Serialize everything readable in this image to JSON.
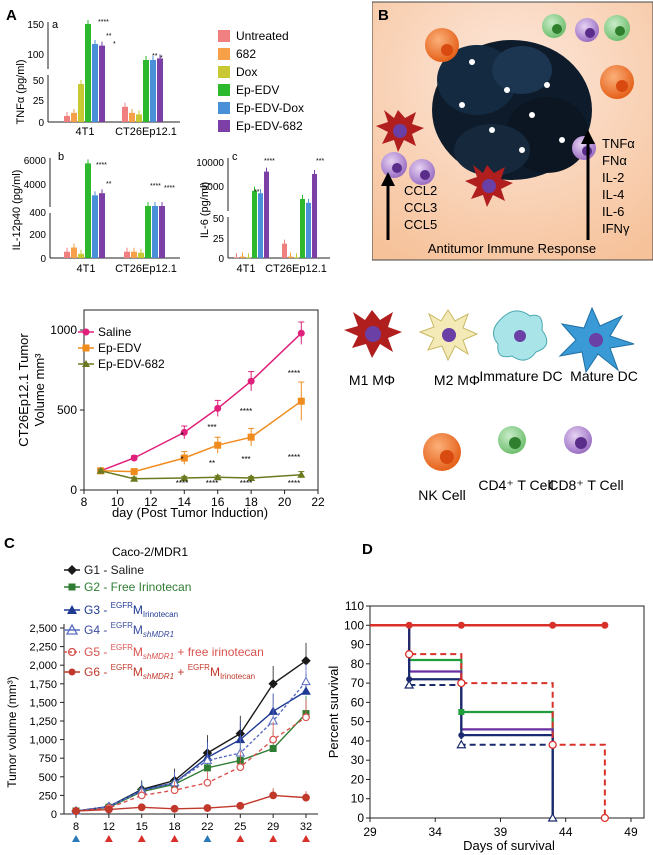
{
  "panel_labels": {
    "A": "A",
    "B": "B",
    "C": "C",
    "D": "D"
  },
  "colors": {
    "untreated": "#f08080",
    "c682": "#f7a04a",
    "dox": "#c8c832",
    "ep_edv": "#2eb82e",
    "ep_edv_dox": "#4a90d9",
    "ep_edv_682": "#7b3fa6",
    "saline": "#e0207a",
    "ep_edv_line": "#f08c1e",
    "ep_edv_682_line": "#6b7a1e",
    "c_g1": "#1a1a1a",
    "c_g2": "#2e7d32",
    "c_g3": "#1f3a93",
    "c_g4": "#5b6ec2",
    "c_g5": "#d9534f",
    "c_g6": "#c0392b",
    "d_red": "#d9302a"
  },
  "panelA": {
    "legend": [
      "Untreated",
      "682",
      "Dox",
      "Ep-EDV",
      "Ep-EDV-Dox",
      "Ep-EDV-682"
    ],
    "a": {
      "sublabel": "a",
      "ylabel": "TNFα (pg/ml)",
      "yticks": [
        "0",
        "25",
        "50",
        "100",
        "150"
      ],
      "groups": [
        "4T1",
        "CT26Ep12.1"
      ],
      "stars": [
        "****",
        "**",
        "*",
        "**",
        "*"
      ]
    },
    "b": {
      "sublabel": "b",
      "ylabel": "IL-12p40 (pg/ml)",
      "yticks": [
        "0",
        "200",
        "400",
        "4000",
        "6000"
      ],
      "groups": [
        "4T1",
        "CT26Ep12.1"
      ],
      "stars": [
        "****",
        "**",
        "****",
        "****"
      ]
    },
    "c": {
      "sublabel": "c",
      "ylabel": "IL-6 (pg/ml)",
      "yticks": [
        "0",
        "25",
        "50",
        "5000",
        "10000"
      ],
      "groups": [
        "4T1",
        "CT26Ep12.1"
      ],
      "stars": [
        "****",
        "**",
        "***"
      ]
    }
  },
  "panelB": {
    "left_cytokines": [
      "CCL2",
      "CCL3",
      "CCL5"
    ],
    "right_cytokines": [
      "TNFα",
      "FNα",
      "IL-2",
      "IL-4",
      "IL-6",
      "IFNγ"
    ],
    "caption": "Antitumor Immune Response"
  },
  "legend_cells": [
    "M1 MΦ",
    "M2 MΦ",
    "Immature DC",
    "Mature DC",
    "NK Cell",
    "CD4⁺ T Cell",
    "CD8⁺ T Cell"
  ],
  "chart_data": [
    {
      "type": "bar",
      "panel": "A-a",
      "title": "TNFα",
      "ylabel": "TNFα (pg/ml)",
      "categories": [
        "4T1",
        "CT26Ep12.1"
      ],
      "series": [
        {
          "name": "Untreated",
          "values": [
            8,
            20
          ]
        },
        {
          "name": "682",
          "values": [
            12,
            12
          ]
        },
        {
          "name": "Dox",
          "values": [
            50,
            10
          ]
        },
        {
          "name": "Ep-EDV",
          "values": [
            155,
            110
          ]
        },
        {
          "name": "Ep-EDV-Dox",
          "values": [
            130,
            110
          ]
        },
        {
          "name": "Ep-EDV-682",
          "values": [
            128,
            112
          ]
        }
      ]
    },
    {
      "type": "bar",
      "panel": "A-b",
      "title": "IL-12p40",
      "ylabel": "IL-12p40 (pg/ml)",
      "categories": [
        "4T1",
        "CT26Ep12.1"
      ],
      "series": [
        {
          "name": "Untreated",
          "values": [
            60,
            60
          ]
        },
        {
          "name": "682",
          "values": [
            100,
            60
          ]
        },
        {
          "name": "Dox",
          "values": [
            40,
            50
          ]
        },
        {
          "name": "Ep-EDV",
          "values": [
            7000,
            3000
          ]
        },
        {
          "name": "Ep-EDV-Dox",
          "values": [
            4000,
            2500
          ]
        },
        {
          "name": "Ep-EDV-682",
          "values": [
            4200,
            2700
          ]
        }
      ]
    },
    {
      "type": "bar",
      "panel": "A-c",
      "title": "IL-6",
      "ylabel": "IL-6 (pg/ml)",
      "categories": [
        "4T1",
        "CT26Ep12.1"
      ],
      "series": [
        {
          "name": "Untreated",
          "values": [
            1,
            20
          ]
        },
        {
          "name": "682",
          "values": [
            2,
            2
          ]
        },
        {
          "name": "Dox",
          "values": [
            1,
            1
          ]
        },
        {
          "name": "Ep-EDV",
          "values": [
            4000,
            2300
          ]
        },
        {
          "name": "Ep-EDV-Dox",
          "values": [
            3500,
            1500
          ]
        },
        {
          "name": "Ep-EDV-682",
          "values": [
            8000,
            7500
          ]
        }
      ]
    },
    {
      "type": "line",
      "panel": "A-d",
      "title": "",
      "xlabel": "day (Post Tumor Induction)",
      "ylabel_lines": [
        "CT26Ep12.1 Tumor",
        "Volume mm³"
      ],
      "x": [
        9,
        11,
        14,
        16,
        18,
        21
      ],
      "xlim": [
        8,
        22
      ],
      "ylim": [
        0,
        1000
      ],
      "xticks": [
        "8",
        "10",
        "12",
        "14",
        "16",
        "18",
        "20",
        "22"
      ],
      "yticks": [
        "0",
        "500",
        "1000"
      ],
      "series": [
        {
          "name": "Saline",
          "values": [
            120,
            200,
            360,
            510,
            680,
            980
          ],
          "err": [
            10,
            15,
            40,
            50,
            60,
            70
          ]
        },
        {
          "name": "Ep-EDV",
          "values": [
            120,
            115,
            200,
            280,
            330,
            555
          ],
          "err": [
            10,
            15,
            40,
            50,
            55,
            120
          ]
        },
        {
          "name": "Ep-EDV-682",
          "values": [
            120,
            70,
            75,
            80,
            75,
            95
          ],
          "err": [
            10,
            10,
            10,
            10,
            10,
            20
          ]
        }
      ],
      "annotations_upper": [
        "*",
        "***",
        "****",
        "****"
      ],
      "annotations_mid": [
        "*",
        "**",
        "***",
        "****"
      ],
      "annotations_lower": [
        "****",
        "****",
        "****",
        "****"
      ]
    },
    {
      "type": "line",
      "panel": "C",
      "title": "Caco-2/MDR1",
      "xlabel": "",
      "ylabel": "Tumor volume (mm³)",
      "x": [
        8,
        12,
        15,
        18,
        22,
        25,
        29,
        32
      ],
      "xticks": [
        "8",
        "12",
        "15",
        "18",
        "22",
        "25",
        "29",
        "32"
      ],
      "yticks": [
        "0",
        "250",
        "500",
        "750",
        "1,000",
        "1,250",
        "1,500",
        "1,750",
        "2,000",
        "2,250",
        "2,500"
      ],
      "ylim": [
        0,
        2500
      ],
      "series": [
        {
          "name": "G1 - Saline",
          "values": [
            40,
            100,
            330,
            450,
            820,
            1080,
            1750,
            2060
          ]
        },
        {
          "name": "G2 - Free Irinotecan",
          "values": [
            40,
            90,
            300,
            400,
            620,
            720,
            880,
            1350
          ]
        },
        {
          "name": "G3 - EGFRM Irinotecan",
          "values": [
            40,
            100,
            320,
            420,
            760,
            1000,
            1380,
            1650
          ]
        },
        {
          "name": "G4 - EGFRM shMDR1",
          "values": [
            40,
            100,
            310,
            420,
            720,
            820,
            1250,
            1780
          ]
        },
        {
          "name": "G5 - EGFRM shMDR1 + free irinotecan",
          "values": [
            40,
            80,
            250,
            320,
            420,
            630,
            1000,
            1300
          ]
        },
        {
          "name": "G6 - EGFRM shMDR1 + EGFRM Irinotecan",
          "values": [
            40,
            60,
            90,
            70,
            80,
            110,
            250,
            220
          ]
        }
      ],
      "legend": {
        "g1": "G1 - Saline",
        "g2": "G2 - Free Irinotecan",
        "g3_prefix": "G3 - ",
        "g3_sup": "EGFR",
        "g3_main": "M",
        "g3_sub": "Irinotecan",
        "g4_prefix": "G4 - ",
        "g4_sup": "EGFR",
        "g4_main": "M",
        "g4_sub": "shMDR1",
        "g5_prefix": "G5 - ",
        "g5_sup": "EGFR",
        "g5_main": "M",
        "g5_sub": "shMDR1",
        "g5_suffix": " + free irinotecan",
        "g6_prefix": "G6 - ",
        "g6_sup": "EGFR",
        "g6_main": "M",
        "g6_sub": "shMDR1",
        "g6_plus": " + ",
        "g6_sup2": "EGFR",
        "g6_main2": "M",
        "g6_sub2": "Irinotecan"
      }
    },
    {
      "type": "line",
      "panel": "D",
      "title": "",
      "xlabel": "Days of survival",
      "ylabel": "Percent survival",
      "xlim": [
        29,
        50
      ],
      "ylim": [
        0,
        110
      ],
      "xticks": [
        "29",
        "34",
        "39",
        "44",
        "49"
      ],
      "yticks": [
        "0",
        "10",
        "20",
        "30",
        "40",
        "50",
        "60",
        "70",
        "80",
        "90",
        "100",
        "110"
      ],
      "series": [
        {
          "name": "red solid",
          "steps": [
            [
              29,
              100
            ],
            [
              47,
              100
            ]
          ],
          "markers": [
            32,
            36,
            43,
            47
          ]
        },
        {
          "name": "green",
          "steps": [
            [
              32,
              100
            ],
            [
              32,
              82
            ],
            [
              36,
              82
            ],
            [
              36,
              55
            ],
            [
              43,
              55
            ],
            [
              43,
              0
            ]
          ]
        },
        {
          "name": "purple",
          "steps": [
            [
              32,
              100
            ],
            [
              32,
              76
            ],
            [
              36,
              76
            ],
            [
              36,
              46
            ],
            [
              43,
              46
            ],
            [
              43,
              0
            ]
          ]
        },
        {
          "name": "navy",
          "steps": [
            [
              32,
              100
            ],
            [
              32,
              72
            ],
            [
              36,
              72
            ],
            [
              36,
              43
            ],
            [
              43,
              43
            ],
            [
              43,
              0
            ]
          ]
        },
        {
          "name": "dashed red",
          "steps": [
            [
              32,
              100
            ],
            [
              32,
              85
            ],
            [
              36,
              85
            ],
            [
              36,
              70
            ],
            [
              43,
              70
            ],
            [
              43,
              38
            ],
            [
              47,
              38
            ],
            [
              47,
              0
            ]
          ]
        },
        {
          "name": "dashed navy",
          "steps": [
            [
              32,
              100
            ],
            [
              32,
              69
            ],
            [
              36,
              69
            ],
            [
              36,
              38
            ],
            [
              43,
              38
            ],
            [
              43,
              0
            ]
          ]
        }
      ]
    }
  ]
}
